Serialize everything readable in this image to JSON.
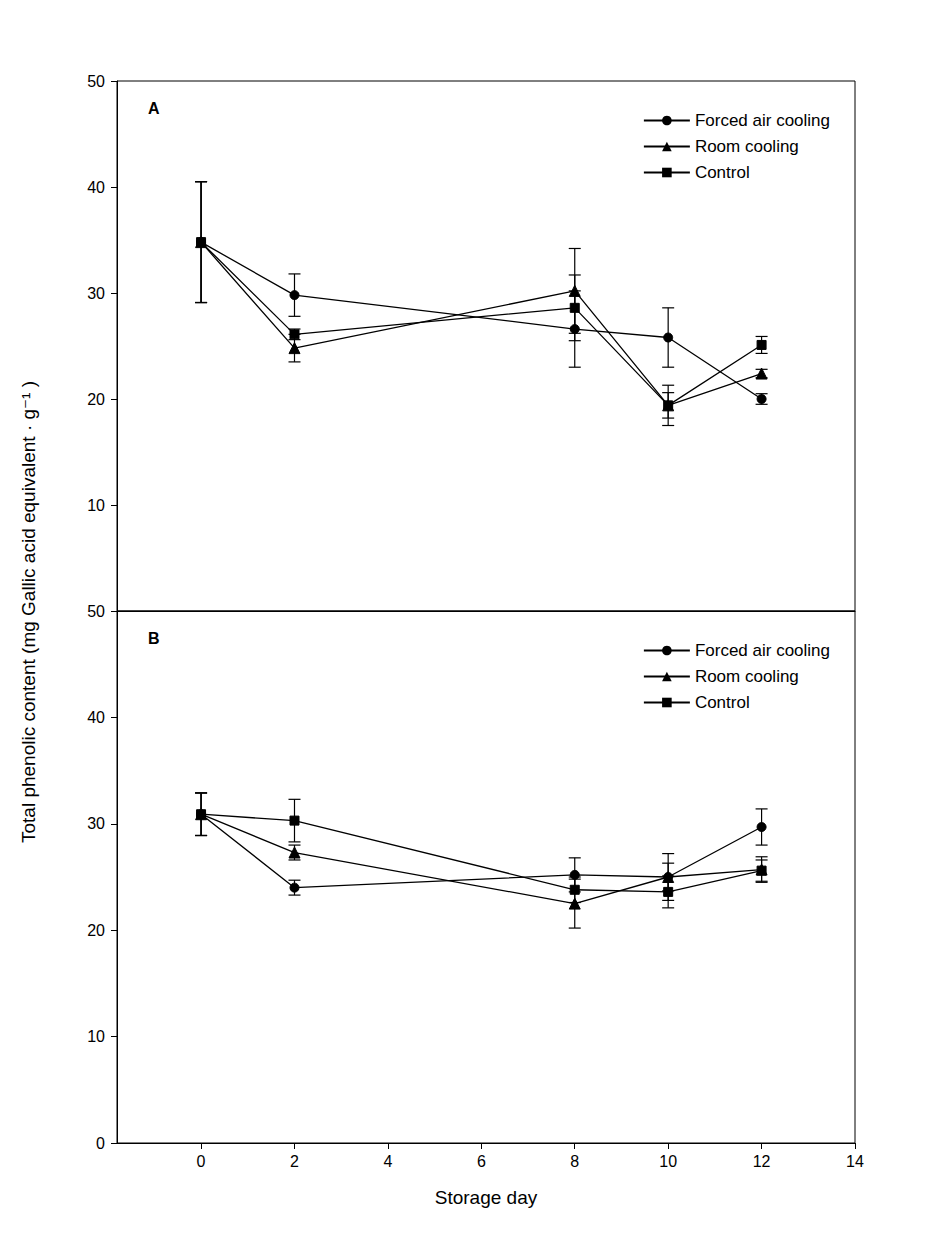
{
  "chart_data": [
    {
      "type": "line",
      "title": "A",
      "ylabel": "Total phenolic content (mg Gallic acid equivalent · g⁻¹ )",
      "xlim": [
        -1.8,
        14
      ],
      "xticks": [
        0,
        2,
        4,
        6,
        8,
        10,
        12,
        14
      ],
      "ylim": [
        0,
        50
      ],
      "yticks": [
        10,
        20,
        30,
        40,
        50
      ],
      "tick_labels": "y",
      "legend": "upper right",
      "series": [
        {
          "name": "Forced air cooling",
          "color": "#000000",
          "marker": "circle",
          "line_style": "solid",
          "x": [
            0,
            2,
            8,
            10,
            12
          ],
          "values": [
            34.8,
            29.8,
            26.6,
            25.8,
            20.0
          ],
          "errors": [
            5.7,
            2.0,
            3.6,
            2.8,
            0.5
          ]
        },
        {
          "name": "Room cooling",
          "color": "#000000",
          "marker": "triangle",
          "line_style": "solid",
          "x": [
            0,
            2,
            8,
            10,
            12
          ],
          "values": [
            34.8,
            24.8,
            30.2,
            19.4,
            22.4
          ],
          "errors": [
            5.7,
            1.3,
            4.0,
            1.2,
            0.4
          ]
        },
        {
          "name": "Control",
          "color": "#000000",
          "marker": "square",
          "line_style": "solid",
          "x": [
            0,
            2,
            8,
            10,
            12
          ],
          "values": [
            34.8,
            26.1,
            28.6,
            19.4,
            25.1
          ],
          "errors": [
            5.7,
            0.5,
            3.1,
            1.9,
            0.8
          ]
        }
      ]
    },
    {
      "type": "line",
      "title": "B",
      "xlabel": "Storage day",
      "xlim": [
        -1.8,
        14
      ],
      "xticks": [
        0,
        2,
        4,
        6,
        8,
        10,
        12,
        14
      ],
      "ylim": [
        0,
        50
      ],
      "yticks": [
        0,
        10,
        20,
        30,
        40,
        50
      ],
      "legend": "upper right",
      "series": [
        {
          "name": "Forced air cooling",
          "color": "#000000",
          "marker": "circle",
          "line_style": "solid",
          "x": [
            0,
            2,
            8,
            10,
            12
          ],
          "values": [
            30.9,
            24.0,
            25.2,
            25.0,
            29.7
          ],
          "errors": [
            2.0,
            0.7,
            1.6,
            1.3,
            1.7
          ]
        },
        {
          "name": "Room cooling",
          "color": "#000000",
          "marker": "triangle",
          "line_style": "solid",
          "x": [
            0,
            2,
            8,
            10,
            12
          ],
          "values": [
            30.9,
            27.3,
            22.5,
            25.0,
            25.7
          ],
          "errors": [
            2.0,
            0.7,
            2.3,
            2.2,
            1.2
          ]
        },
        {
          "name": "Control",
          "color": "#000000",
          "marker": "square",
          "line_style": "solid",
          "x": [
            0,
            2,
            8,
            10,
            12
          ],
          "values": [
            30.9,
            30.3,
            23.8,
            23.6,
            25.6
          ],
          "errors": [
            2.0,
            2.0,
            1.2,
            1.5,
            1.0
          ]
        }
      ]
    }
  ]
}
